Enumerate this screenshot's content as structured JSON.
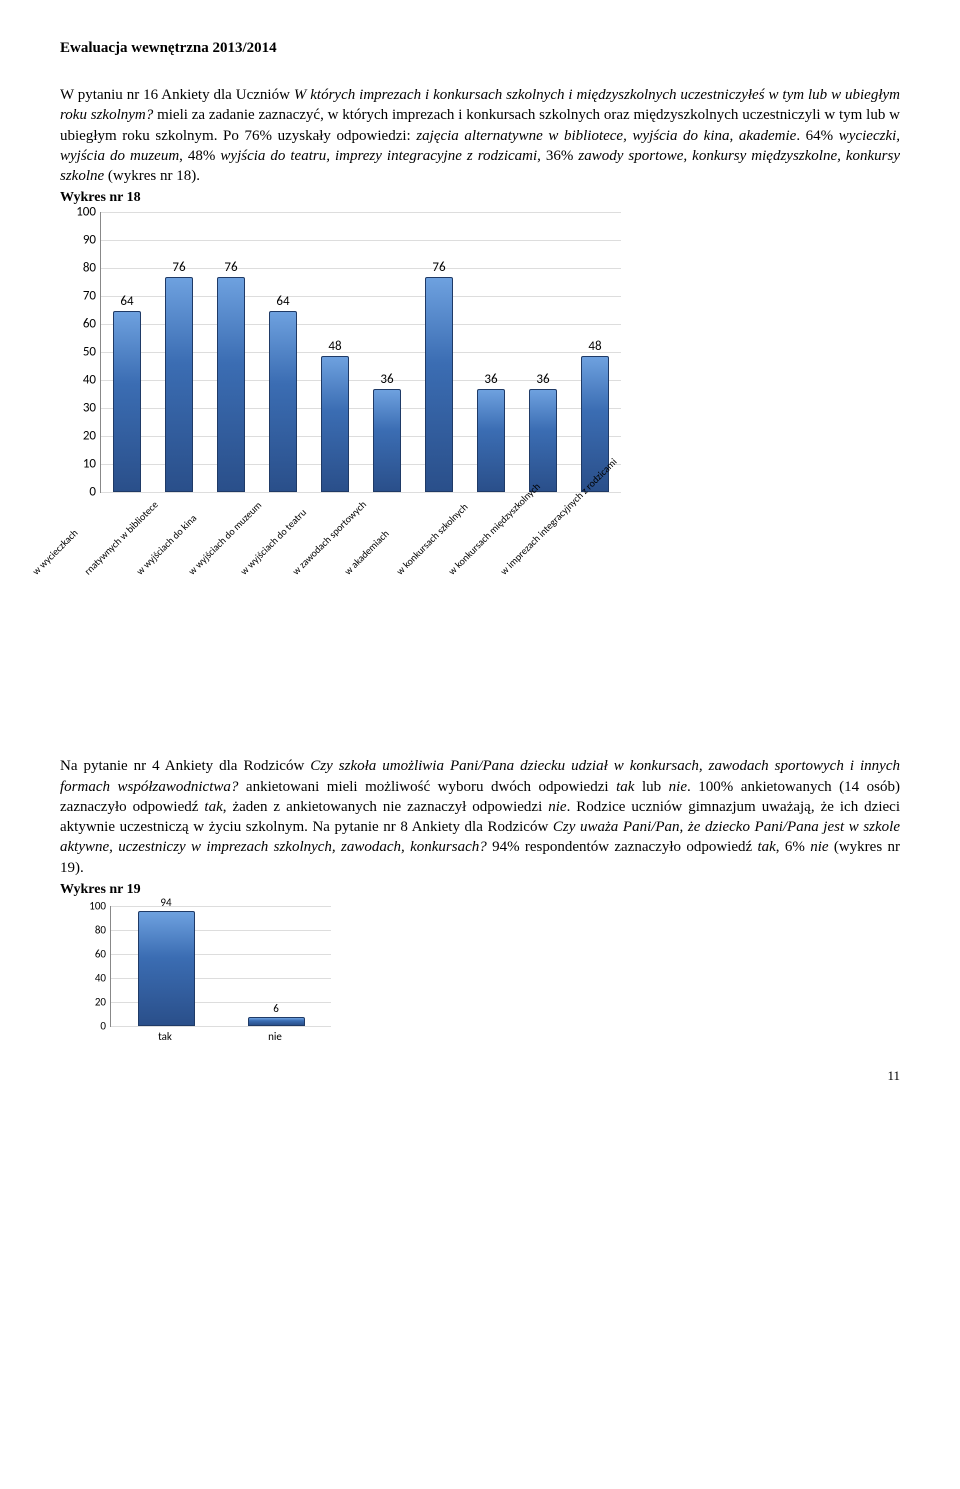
{
  "header": "Ewaluacja wewnętrzna 2013/2014",
  "para1_runs": [
    {
      "text": "W pytaniu nr 16 Ankiety dla Uczniów ",
      "italic": false
    },
    {
      "text": "W których imprezach i konkursach szkolnych i międzyszkolnych uczestniczyłeś w tym lub w ubiegłym roku szkolnym? ",
      "italic": true
    },
    {
      "text": "mieli za zadanie zaznaczyć, w których imprezach i konkursach szkolnych oraz międzyszkolnych uczestniczyli w tym lub w ubiegłym roku szkolnym. Po 76% uzyskały odpowiedzi: ",
      "italic": false
    },
    {
      "text": "zajęcia alternatywne w bibliotece, wyjścia do kina, akademie",
      "italic": true
    },
    {
      "text": ". 64% ",
      "italic": false
    },
    {
      "text": "wycieczki, wyjścia do muzeum",
      "italic": true
    },
    {
      "text": ", 48% ",
      "italic": false
    },
    {
      "text": "wyjścia do teatru, imprezy integracyjne z rodzicami",
      "italic": true
    },
    {
      "text": ", 36% ",
      "italic": false
    },
    {
      "text": "zawody sportowe, konkursy międzyszkolne, konkursy szkolne",
      "italic": true
    },
    {
      "text": " (wykres nr 18).",
      "italic": false
    }
  ],
  "chart18_title": "Wykres nr 18",
  "chart18": {
    "type": "bar",
    "ylim": [
      0,
      100
    ],
    "ytick_step": 10,
    "bar_color_gradient": [
      "#6ea1df",
      "#3b6db3",
      "#2a4f8a"
    ],
    "grid_color": "#dddddd",
    "axis_color": "#888888",
    "label_fontsize": 10,
    "value_fontsize": 13,
    "categories": [
      "w wycieczkach",
      "rnatywnych w bibliotece",
      "w wyjściach do kina",
      "w wyjściach do muzeum",
      "w wyjściach do teatru",
      "w zawodach sportowych",
      "w akademiach",
      "w konkursach szkolnych",
      "w konkursach międzyszkolnych",
      "w imprezach integracyjnych z rodzicami"
    ],
    "values": [
      64,
      76,
      76,
      64,
      48,
      36,
      76,
      36,
      36,
      48
    ]
  },
  "para2_runs": [
    {
      "text": "Na pytanie nr  4 Ankiety dla Rodziców ",
      "italic": false
    },
    {
      "text": "Czy szkoła umożliwia Pani/Pana dziecku udział w konkursach, zawodach sportowych i innych formach współzawodnictwa?",
      "italic": true
    },
    {
      "text": " ankietowani mieli możliwość wyboru dwóch odpowiedzi ",
      "italic": false
    },
    {
      "text": "tak",
      "italic": true
    },
    {
      "text": " lub ",
      "italic": false
    },
    {
      "text": "nie",
      "italic": true
    },
    {
      "text": ". 100% ankietowanych (14 osób) zaznaczyło odpowiedź ",
      "italic": false
    },
    {
      "text": "tak",
      "italic": true
    },
    {
      "text": ", żaden z ankietowanych nie zaznaczył odpowiedzi ",
      "italic": false
    },
    {
      "text": "nie",
      "italic": true
    },
    {
      "text": ". Rodzice uczniów gimnazjum uważają, że ich dzieci aktywnie uczestniczą w życiu szkolnym. Na pytanie nr 8 Ankiety dla Rodziców ",
      "italic": false
    },
    {
      "text": "Czy uważa Pani/Pan, że dziecko Pani/Pana jest w szkole aktywne, uczestniczy w imprezach szkolnych, zawodach, konkursach?",
      "italic": true
    },
    {
      "text": " 94% respondentów zaznaczyło odpowiedź ",
      "italic": false
    },
    {
      "text": "tak",
      "italic": true
    },
    {
      "text": ",  6%  ",
      "italic": false
    },
    {
      "text": "nie",
      "italic": true
    },
    {
      "text": " (wykres nr 19).",
      "italic": false
    }
  ],
  "chart19_title": "Wykres nr 19",
  "chart19": {
    "type": "bar",
    "ylim": [
      0,
      100
    ],
    "ytick_step": 20,
    "bar_color_gradient": [
      "#6ea1df",
      "#3b6db3",
      "#2a4f8a"
    ],
    "grid_color": "#dddddd",
    "axis_color": "#888888",
    "label_fontsize": 11,
    "value_fontsize": 11,
    "categories": [
      "tak",
      "nie"
    ],
    "values": [
      94,
      6
    ]
  },
  "page_number": "11"
}
